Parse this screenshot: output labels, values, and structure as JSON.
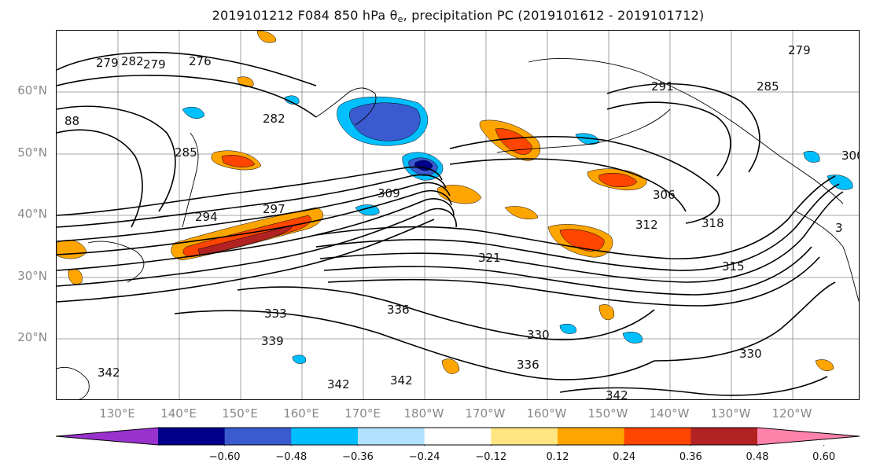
{
  "title": {
    "prefix": "2019101212 F084 850 hPa θ",
    "sub": "e",
    "suffix": ", precipitation PC (2019101612 - 2019101712)"
  },
  "lat_labels": [
    "60°N",
    "50°N",
    "40°N",
    "30°N",
    "20°N"
  ],
  "lon_labels": [
    "130°E",
    "140°E",
    "150°E",
    "160°E",
    "170°E",
    "180°W",
    "170°W",
    "160°W",
    "150°W",
    "140°W",
    "130°W",
    "120°W"
  ],
  "contour_labels": [
    "279",
    "282",
    "279",
    "276",
    "88",
    "282",
    "285",
    "294",
    "297",
    "309",
    "306",
    "312",
    "318",
    "321",
    "315",
    "330",
    "336",
    "339",
    "333",
    "342",
    "342",
    "342",
    "336",
    "330",
    "342",
    "279",
    "285",
    "291",
    "300",
    "3"
  ],
  "colorbar": {
    "colors": [
      "#9932cc",
      "#00008b",
      "#3a5bd0",
      "#00bfff",
      "#b0e2ff",
      "#ffffff",
      "#ffe680",
      "#ffa500",
      "#ff4500",
      "#b22222",
      "#ff82ab"
    ],
    "ticks": [
      "−0.60",
      "−0.48",
      "−0.36",
      "−0.24",
      "−0.12",
      "0.12",
      "0.24",
      "0.36",
      "0.48",
      "0.60"
    ]
  }
}
